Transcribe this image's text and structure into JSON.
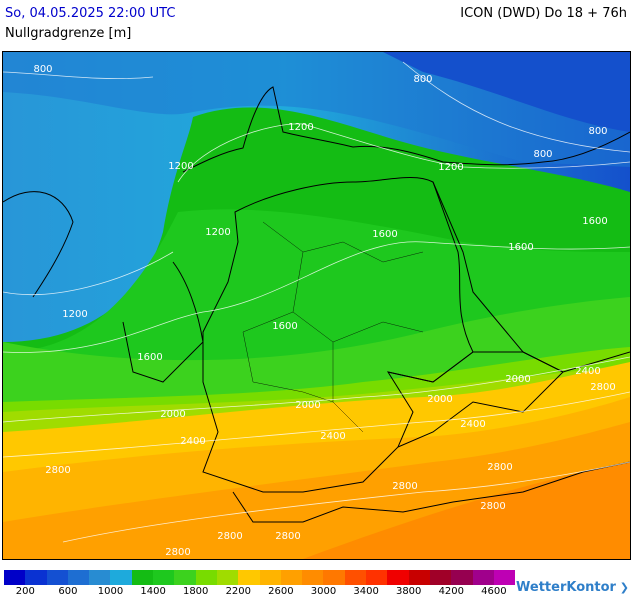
{
  "header": {
    "date": "So, 04.05.2025 22:00 UTC",
    "variable": "Nullgradgrenze [m]",
    "model": "ICON (DWD) Do 18 + 76h"
  },
  "map": {
    "contour_labels": [
      "800",
      "800",
      "800",
      "800",
      "1200",
      "1200",
      "1200",
      "1200",
      "1200",
      "1600",
      "1600",
      "1600",
      "1600",
      "1600",
      "2000",
      "2000",
      "2000",
      "2000",
      "2400",
      "2400",
      "2400",
      "2400",
      "2800",
      "2800",
      "2800",
      "2800",
      "2800",
      "2800",
      "2800",
      "2800"
    ]
  },
  "legend": {
    "colors": [
      "#0000c8",
      "#0a32d2",
      "#1450d2",
      "#1e6ed2",
      "#288cd2",
      "#1eaadc",
      "#14bc14",
      "#1ec81e",
      "#3cd21e",
      "#78dc00",
      "#a0dc00",
      "#ffc800",
      "#ffb400",
      "#ffa000",
      "#ff8c00",
      "#ff7800",
      "#ff5000",
      "#ff3200",
      "#f00000",
      "#c80000",
      "#a00028",
      "#960050",
      "#a0008c",
      "#be00b4"
    ],
    "ticks": [
      "200",
      "600",
      "1000",
      "1400",
      "1800",
      "2200",
      "2600",
      "3000",
      "3400",
      "3800",
      "4200",
      "4600"
    ]
  },
  "brand": {
    "name": "WetterKontor"
  }
}
